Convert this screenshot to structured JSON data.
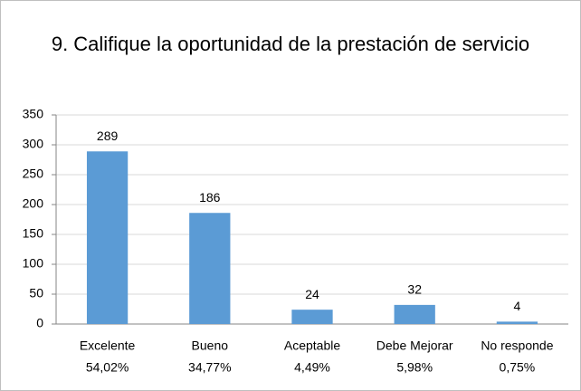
{
  "chart_data": {
    "type": "bar",
    "title": "9. Califique la oportunidad de la prestación de servicio",
    "categories": [
      [
        "Excelente",
        "54,02%"
      ],
      [
        "Bueno",
        "34,77%"
      ],
      [
        "Aceptable",
        "4,49%"
      ],
      [
        "Debe Mejorar",
        "5,98%"
      ],
      [
        "No responde",
        "0,75%"
      ]
    ],
    "values": [
      289,
      186,
      24,
      32,
      4
    ],
    "color": "#5b9bd5",
    "ylim": [
      0,
      350
    ],
    "yticks": [
      0,
      50,
      100,
      150,
      200,
      250,
      300,
      350
    ],
    "grid": true
  }
}
